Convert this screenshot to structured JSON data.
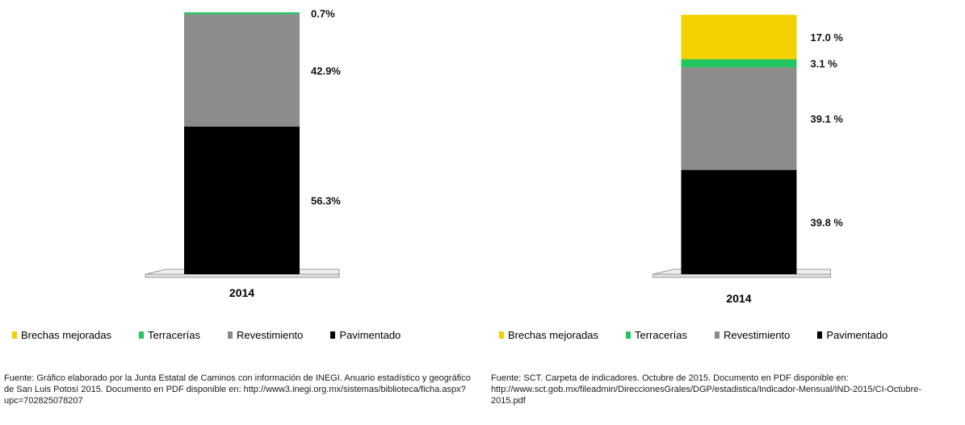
{
  "chart_data": [
    {
      "type": "bar",
      "stacked": true,
      "categories": [
        "2014"
      ],
      "series": [
        {
          "name": "Brechas mejoradas",
          "values": [
            0
          ],
          "label": "",
          "color": "#f5d000"
        },
        {
          "name": "Terracerías",
          "values": [
            0.7
          ],
          "label": "0.7%",
          "color": "#22c55e"
        },
        {
          "name": "Revestimiento",
          "values": [
            42.9
          ],
          "label": "42.9%",
          "color": "#8c8c8c"
        },
        {
          "name": "Pavimentado",
          "values": [
            56.3
          ],
          "label": "56.3%",
          "color": "#000000"
        }
      ],
      "ylim": [
        0,
        100
      ],
      "grid": false,
      "legend": "bottom",
      "source": "Fuente: Gráfico elaborado por la Junta Estatal de Caminos con información de INEGI. Anuario estadístico y geográfico de San Luis Potosí 2015. Documento en PDF disponible en: http://www3.inegi.org.mx/sistemas/biblioteca/ficha.aspx?upc=702825078207"
    },
    {
      "type": "bar",
      "stacked": true,
      "categories": [
        "2014"
      ],
      "series": [
        {
          "name": "Brechas mejoradas",
          "values": [
            17.0
          ],
          "label": "17.0 %",
          "color": "#f5d000"
        },
        {
          "name": "Terracerías",
          "values": [
            3.1
          ],
          "label": "3.1 %",
          "color": "#22c55e"
        },
        {
          "name": "Revestimiento",
          "values": [
            39.1
          ],
          "label": "39.1 %",
          "color": "#8c8c8c"
        },
        {
          "name": "Pavimentado",
          "values": [
            39.8
          ],
          "label": "39.8 %",
          "color": "#000000"
        }
      ],
      "ylim": [
        0,
        100
      ],
      "grid": false,
      "legend": "bottom",
      "source": "Fuente: SCT. Carpeta de indicadores. Octubre de 2015. Documento en PDF disponible en: http://www.sct.gob.mx/fileadmin/DireccionesGrales/DGP/estadistica/Indicador-Mensual/IND-2015/CI-Octubre-2015.pdf"
    }
  ]
}
